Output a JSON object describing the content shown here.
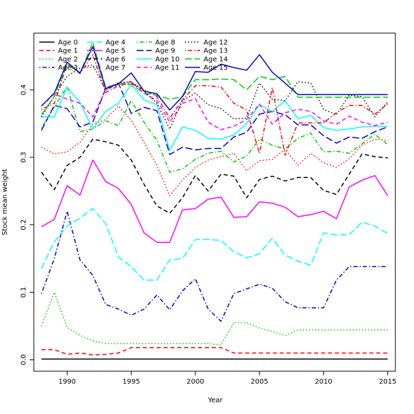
{
  "chart_data": {
    "type": "line",
    "title": "",
    "xlabel": "Year",
    "ylabel": "Stock mean weight",
    "xlim": [
      1987.4,
      2015.6
    ],
    "ylim": [
      -0.017,
      0.484
    ],
    "x_ticks": [
      1990,
      1995,
      2000,
      2005,
      2010,
      2015
    ],
    "y_ticks": [
      0.0,
      0.1,
      0.2,
      0.3,
      0.4
    ],
    "y_tick_labels": [
      "0.0",
      "0.1",
      "0.2",
      "0.3",
      "0.4"
    ],
    "grid": false,
    "legend_position": "top-left",
    "legend_columns": 4,
    "x": [
      1988,
      1989,
      1990,
      1991,
      1992,
      1993,
      1994,
      1995,
      1996,
      1997,
      1998,
      1999,
      2000,
      2001,
      2002,
      2003,
      2004,
      2005,
      2006,
      2007,
      2008,
      2009,
      2010,
      2011,
      2012,
      2013,
      2014,
      2015
    ],
    "series": [
      {
        "name": "Age 0",
        "color": "#000000",
        "dash": "solid",
        "values": [
          0.001,
          0.001,
          0.001,
          0.001,
          0.001,
          0.001,
          0.001,
          0.001,
          0.001,
          0.001,
          0.001,
          0.001,
          0.001,
          0.001,
          0.001,
          0.001,
          0.001,
          0.001,
          0.001,
          0.001,
          0.001,
          0.001,
          0.001,
          0.001,
          0.001,
          0.001,
          0.001,
          0.001
        ]
      },
      {
        "name": "Age 1",
        "color": "#ff0000",
        "dash": "dashed",
        "values": [
          0.015,
          0.015,
          0.008,
          0.01,
          0.007,
          0.008,
          0.01,
          0.018,
          0.018,
          0.018,
          0.018,
          0.018,
          0.018,
          0.018,
          0.018,
          0.01,
          0.01,
          0.01,
          0.01,
          0.01,
          0.01,
          0.01,
          0.01,
          0.01,
          0.01,
          0.01,
          0.01,
          0.01
        ]
      },
      {
        "name": "Age 2",
        "color": "#00cd00",
        "dash": "dotted",
        "values": [
          0.05,
          0.1,
          0.048,
          0.036,
          0.028,
          0.024,
          0.024,
          0.024,
          0.024,
          0.024,
          0.024,
          0.024,
          0.024,
          0.024,
          0.022,
          0.055,
          0.055,
          0.047,
          0.042,
          0.036,
          0.044,
          0.044,
          0.044,
          0.044,
          0.044,
          0.044,
          0.044,
          0.044
        ]
      },
      {
        "name": "Age 3",
        "color": "#0000cd",
        "dash": "dotdash",
        "values": [
          0.098,
          0.15,
          0.22,
          0.148,
          0.125,
          0.082,
          0.075,
          0.066,
          0.075,
          0.096,
          0.074,
          0.102,
          0.12,
          0.075,
          0.057,
          0.098,
          0.105,
          0.112,
          0.106,
          0.086,
          0.077,
          0.077,
          0.077,
          0.118,
          0.138,
          0.138,
          0.138,
          0.138
        ]
      },
      {
        "name": "Age 4",
        "color": "#00ffff",
        "dash": "longdash",
        "values": [
          0.135,
          0.175,
          0.198,
          0.21,
          0.224,
          0.202,
          0.152,
          0.138,
          0.118,
          0.118,
          0.148,
          0.15,
          0.178,
          0.178,
          0.177,
          0.16,
          0.151,
          0.157,
          0.18,
          0.155,
          0.146,
          0.14,
          0.188,
          0.185,
          0.185,
          0.204,
          0.198,
          0.187
        ]
      },
      {
        "name": "Age 5",
        "color": "#ff00ff",
        "dash": "solid",
        "values": [
          0.197,
          0.208,
          0.258,
          0.244,
          0.296,
          0.264,
          0.254,
          0.23,
          0.188,
          0.174,
          0.174,
          0.222,
          0.224,
          0.238,
          0.241,
          0.211,
          0.212,
          0.234,
          0.232,
          0.226,
          0.212,
          0.215,
          0.22,
          0.209,
          0.256,
          0.266,
          0.273,
          0.243
        ]
      },
      {
        "name": "Age 6",
        "color": "#000000",
        "dash": "dashed",
        "values": [
          0.278,
          0.252,
          0.288,
          0.3,
          0.327,
          0.323,
          0.318,
          0.296,
          0.26,
          0.228,
          0.217,
          0.24,
          0.273,
          0.25,
          0.275,
          0.272,
          0.24,
          0.267,
          0.272,
          0.265,
          0.27,
          0.27,
          0.251,
          0.245,
          0.275,
          0.305,
          0.301,
          0.299
        ]
      },
      {
        "name": "Age 7",
        "color": "#ff0000",
        "dash": "dotted",
        "values": [
          0.315,
          0.305,
          0.308,
          0.322,
          0.349,
          0.356,
          0.376,
          0.355,
          0.322,
          0.288,
          0.243,
          0.266,
          0.285,
          0.296,
          0.301,
          0.306,
          0.28,
          0.295,
          0.297,
          0.312,
          0.288,
          0.306,
          0.292,
          0.285,
          0.298,
          0.318,
          0.327,
          0.325
        ]
      },
      {
        "name": "Age 8",
        "color": "#00cd00",
        "dash": "dotdash",
        "values": [
          0.343,
          0.375,
          0.405,
          0.338,
          0.342,
          0.354,
          0.347,
          0.384,
          0.352,
          0.325,
          0.278,
          0.283,
          0.297,
          0.306,
          0.309,
          0.293,
          0.302,
          0.327,
          0.318,
          0.312,
          0.328,
          0.336,
          0.308,
          0.309,
          0.306,
          0.32,
          0.334,
          0.319
        ]
      },
      {
        "name": "Age 9",
        "color": "#0000cd",
        "dash": "longdash",
        "values": [
          0.34,
          0.377,
          0.372,
          0.345,
          0.352,
          0.402,
          0.41,
          0.365,
          0.374,
          0.369,
          0.304,
          0.315,
          0.311,
          0.313,
          0.313,
          0.33,
          0.337,
          0.364,
          0.368,
          0.363,
          0.348,
          0.348,
          0.332,
          0.321,
          0.33,
          0.328,
          0.338,
          0.345
        ]
      },
      {
        "name": "Age 10",
        "color": "#00ffff",
        "dash": "solid",
        "values": [
          0.36,
          0.36,
          0.404,
          0.381,
          0.342,
          0.368,
          0.38,
          0.408,
          0.385,
          0.378,
          0.31,
          0.345,
          0.34,
          0.328,
          0.327,
          0.333,
          0.35,
          0.378,
          0.368,
          0.384,
          0.357,
          0.362,
          0.344,
          0.34,
          0.342,
          0.345,
          0.346,
          0.346
        ]
      },
      {
        "name": "Age 11",
        "color": "#ff00ff",
        "dash": "dashed",
        "values": [
          0.376,
          0.394,
          0.386,
          0.38,
          0.36,
          0.4,
          0.408,
          0.412,
          0.395,
          0.384,
          0.352,
          0.38,
          0.387,
          0.352,
          0.341,
          0.346,
          0.356,
          0.379,
          0.349,
          0.366,
          0.371,
          0.368,
          0.354,
          0.349,
          0.361,
          0.352,
          0.347,
          0.352
        ]
      },
      {
        "name": "Age 12",
        "color": "#000000",
        "dash": "dotted",
        "values": [
          0.36,
          0.39,
          0.42,
          0.432,
          0.437,
          0.4,
          0.41,
          0.412,
          0.398,
          0.38,
          0.342,
          0.384,
          0.395,
          0.378,
          0.372,
          0.357,
          0.358,
          0.41,
          0.386,
          0.384,
          0.412,
          0.41,
          0.371,
          0.363,
          0.392,
          0.39,
          0.36,
          0.382
        ]
      },
      {
        "name": "Age 13",
        "color": "#ff0000",
        "dash": "dotdash",
        "values": [
          0.371,
          0.38,
          0.438,
          0.424,
          0.452,
          0.396,
          0.406,
          0.41,
          0.4,
          0.39,
          0.358,
          0.385,
          0.406,
          0.406,
          0.404,
          0.38,
          0.37,
          0.306,
          0.403,
          0.303,
          0.351,
          0.351,
          0.351,
          0.366,
          0.377,
          0.377,
          0.364,
          0.379
        ]
      },
      {
        "name": "Age 14",
        "color": "#00cd00",
        "dash": "longdash",
        "values": [
          0.363,
          0.39,
          0.438,
          0.425,
          0.47,
          0.404,
          0.408,
          0.408,
          0.395,
          0.392,
          0.386,
          0.39,
          0.415,
          0.415,
          0.416,
          0.415,
          0.4,
          0.42,
          0.415,
          0.42,
          0.389,
          0.389,
          0.389,
          0.389,
          0.389,
          0.389,
          0.389,
          0.389
        ]
      },
      {
        "name": "Age 15",
        "color": "#0000cd",
        "dash": "solid",
        "values": [
          0.376,
          0.395,
          0.441,
          0.425,
          0.464,
          0.402,
          0.409,
          0.425,
          0.398,
          0.394,
          0.37,
          0.39,
          0.427,
          0.426,
          0.438,
          0.433,
          0.429,
          0.452,
          0.426,
          0.41,
          0.393,
          0.393,
          0.393,
          0.393,
          0.393,
          0.393,
          0.393,
          0.393
        ]
      }
    ]
  }
}
